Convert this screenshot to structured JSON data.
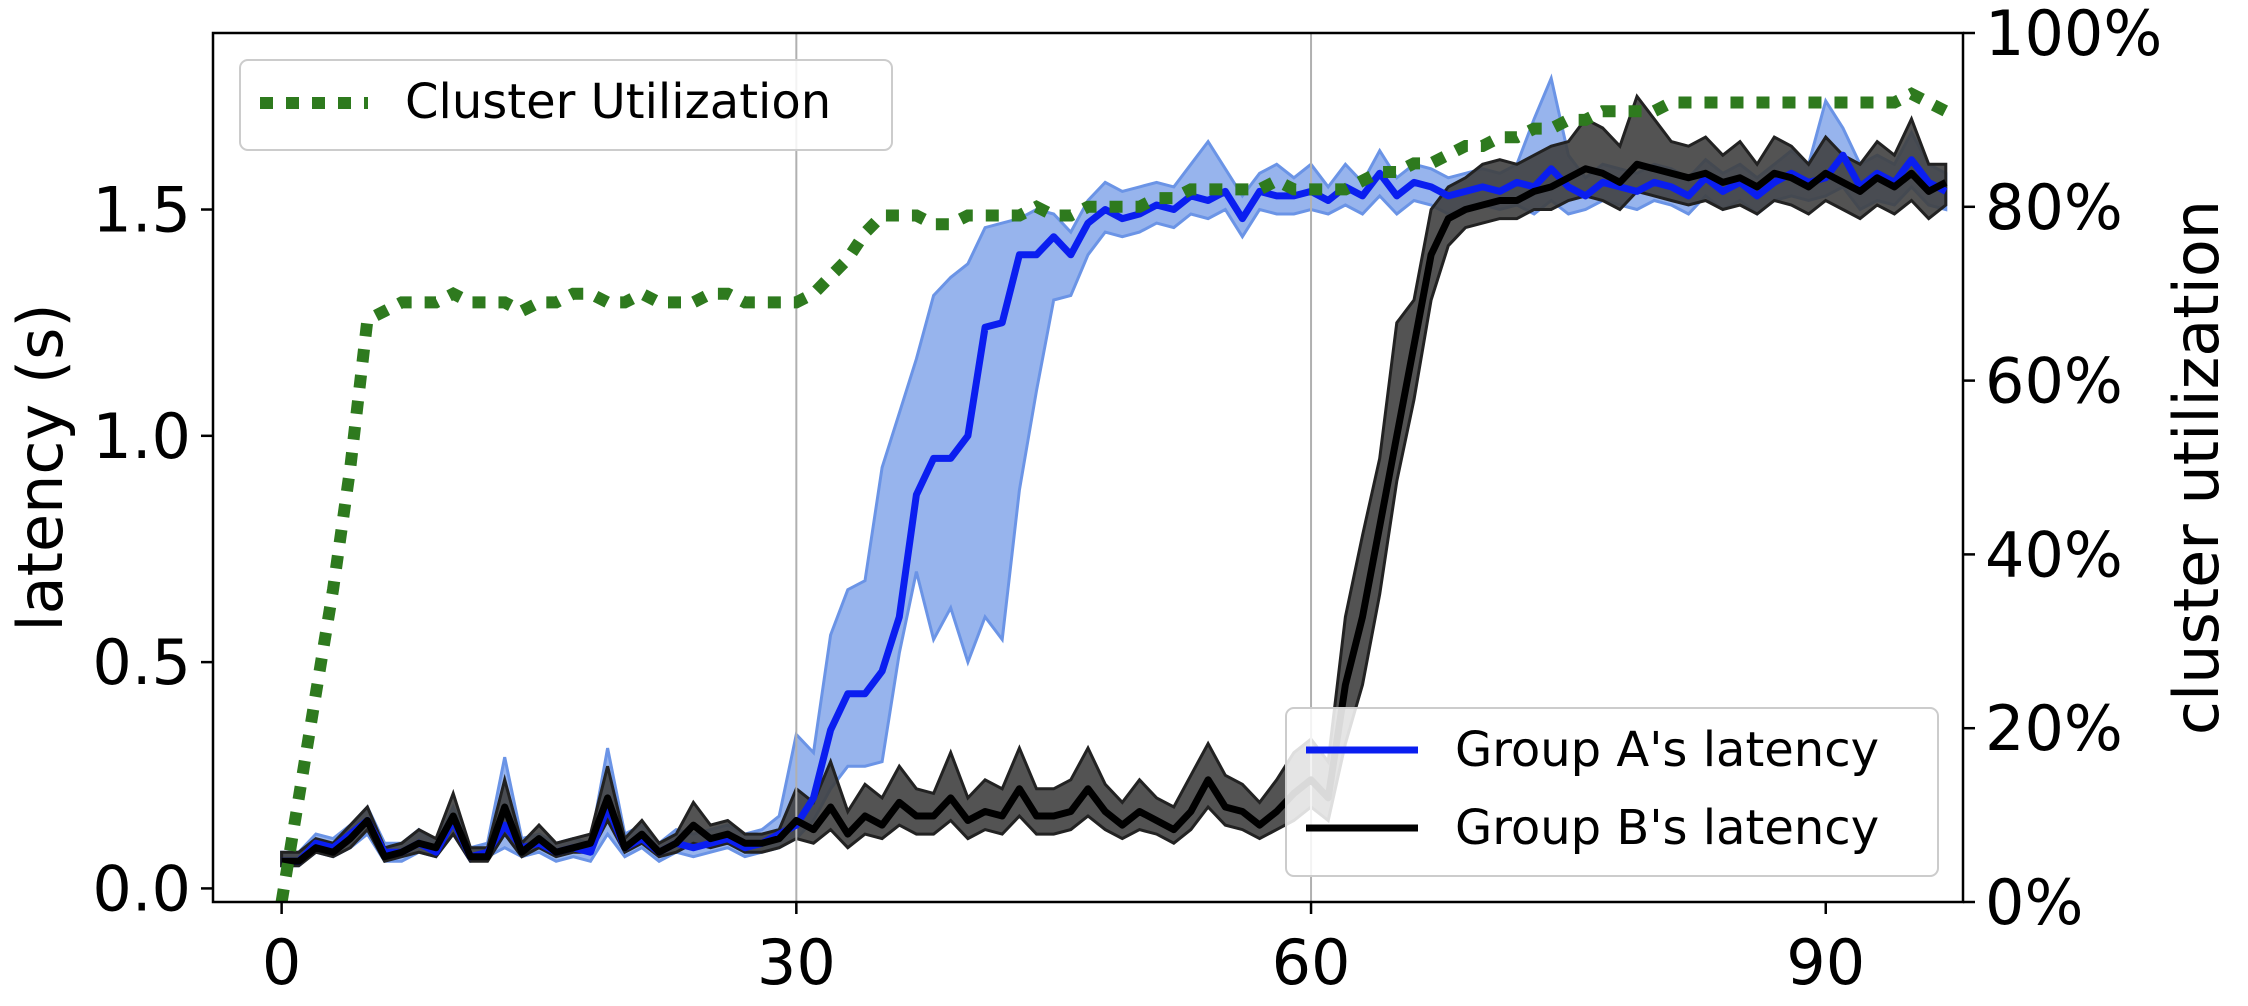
{
  "chart_data": {
    "type": "line",
    "xlabel": "",
    "ylabel": "latency (s)",
    "y2label": "cluster utilization",
    "xlim": [
      -4,
      98
    ],
    "ylim": [
      -0.03,
      1.89
    ],
    "y2lim": [
      0,
      100
    ],
    "x_ticks": [
      0,
      30,
      60,
      90
    ],
    "x_tick_labels": [
      "0",
      "30",
      "60",
      "90"
    ],
    "y_ticks": [
      0.0,
      0.5,
      1.0,
      1.5
    ],
    "y_tick_labels": [
      "0.0",
      "0.5",
      "1.0",
      "1.5"
    ],
    "y2_ticks": [
      0,
      20,
      40,
      60,
      80,
      100
    ],
    "y2_tick_labels": [
      "0%",
      "20%",
      "40%",
      "60%",
      "80%",
      "100%"
    ],
    "vertical_lines_x": [
      30,
      60
    ],
    "grid": false,
    "legends": [
      {
        "placement": "upper-left",
        "entries": [
          "Cluster Utilization"
        ]
      },
      {
        "placement": "lower-right",
        "entries": [
          "Group A's latency",
          "Group B's latency"
        ]
      }
    ],
    "colors": {
      "group_a": "#0a1ef0",
      "group_a_band": "#6b94e6",
      "group_b": "#000000",
      "group_b_band": "#404040",
      "utilization": "#2e7a1e",
      "vline": "#b0b0b0"
    },
    "series": [
      {
        "name": "Group A's latency",
        "axis": "left",
        "x": [
          0,
          1,
          2,
          3,
          4,
          5,
          6,
          7,
          8,
          9,
          10,
          11,
          12,
          13,
          14,
          15,
          16,
          17,
          18,
          19,
          20,
          21,
          22,
          23,
          24,
          25,
          26,
          27,
          28,
          29,
          30,
          31,
          32,
          33,
          34,
          35,
          36,
          37,
          38,
          39,
          40,
          41,
          42,
          43,
          44,
          45,
          46,
          47,
          48,
          49,
          50,
          51,
          52,
          53,
          54,
          55,
          56,
          57,
          58,
          59,
          60,
          61,
          62,
          63,
          64,
          65,
          66,
          67,
          68,
          69,
          70,
          71,
          72,
          73,
          74,
          75,
          76,
          77,
          78,
          79,
          80,
          81,
          82,
          83,
          84,
          85,
          86,
          87,
          88,
          89,
          90,
          91,
          92,
          93,
          94,
          95,
          96,
          97
        ],
        "y": [
          0.06,
          0.06,
          0.1,
          0.09,
          0.12,
          0.15,
          0.08,
          0.08,
          0.1,
          0.08,
          0.15,
          0.07,
          0.08,
          0.14,
          0.09,
          0.1,
          0.08,
          0.09,
          0.08,
          0.18,
          0.09,
          0.11,
          0.08,
          0.1,
          0.09,
          0.1,
          0.11,
          0.09,
          0.1,
          0.12,
          0.14,
          0.2,
          0.35,
          0.43,
          0.43,
          0.48,
          0.6,
          0.87,
          0.95,
          0.95,
          1.0,
          1.24,
          1.25,
          1.4,
          1.4,
          1.44,
          1.4,
          1.47,
          1.5,
          1.48,
          1.49,
          1.51,
          1.5,
          1.53,
          1.52,
          1.54,
          1.48,
          1.54,
          1.53,
          1.53,
          1.54,
          1.52,
          1.55,
          1.53,
          1.58,
          1.53,
          1.56,
          1.55,
          1.53,
          1.54,
          1.55,
          1.54,
          1.56,
          1.55,
          1.59,
          1.55,
          1.53,
          1.56,
          1.55,
          1.54,
          1.56,
          1.55,
          1.53,
          1.57,
          1.54,
          1.56,
          1.53,
          1.56,
          1.58,
          1.56,
          1.57,
          1.62,
          1.55,
          1.58,
          1.56,
          1.61,
          1.56,
          1.54
        ],
        "lower": [
          0.05,
          0.05,
          0.08,
          0.07,
          0.09,
          0.12,
          0.06,
          0.06,
          0.08,
          0.07,
          0.12,
          0.06,
          0.07,
          0.09,
          0.07,
          0.08,
          0.06,
          0.07,
          0.06,
          0.12,
          0.07,
          0.09,
          0.06,
          0.08,
          0.07,
          0.08,
          0.09,
          0.07,
          0.08,
          0.09,
          0.11,
          0.15,
          0.22,
          0.27,
          0.27,
          0.28,
          0.52,
          0.7,
          0.55,
          0.62,
          0.5,
          0.6,
          0.55,
          0.88,
          1.1,
          1.3,
          1.31,
          1.4,
          1.45,
          1.44,
          1.45,
          1.47,
          1.46,
          1.49,
          1.48,
          1.5,
          1.44,
          1.5,
          1.49,
          1.49,
          1.5,
          1.49,
          1.51,
          1.49,
          1.53,
          1.49,
          1.52,
          1.51,
          1.49,
          1.5,
          1.51,
          1.5,
          1.51,
          1.49,
          1.52,
          1.49,
          1.5,
          1.52,
          1.51,
          1.5,
          1.52,
          1.51,
          1.49,
          1.53,
          1.5,
          1.52,
          1.49,
          1.52,
          1.53,
          1.52,
          1.53,
          1.55,
          1.5,
          1.52,
          1.51,
          1.55,
          1.51,
          1.5
        ],
        "upper": [
          0.08,
          0.08,
          0.12,
          0.11,
          0.14,
          0.18,
          0.1,
          0.1,
          0.13,
          0.1,
          0.18,
          0.09,
          0.1,
          0.29,
          0.11,
          0.12,
          0.1,
          0.11,
          0.1,
          0.31,
          0.12,
          0.14,
          0.1,
          0.13,
          0.12,
          0.13,
          0.14,
          0.12,
          0.13,
          0.16,
          0.34,
          0.3,
          0.56,
          0.66,
          0.68,
          0.93,
          1.05,
          1.17,
          1.31,
          1.35,
          1.38,
          1.46,
          1.47,
          1.48,
          1.5,
          1.49,
          1.45,
          1.52,
          1.56,
          1.54,
          1.55,
          1.56,
          1.55,
          1.6,
          1.65,
          1.59,
          1.53,
          1.58,
          1.6,
          1.57,
          1.6,
          1.55,
          1.6,
          1.56,
          1.63,
          1.57,
          1.6,
          1.59,
          1.57,
          1.58,
          1.59,
          1.58,
          1.6,
          1.7,
          1.79,
          1.62,
          1.57,
          1.6,
          1.59,
          1.58,
          1.6,
          1.59,
          1.57,
          1.61,
          1.58,
          1.6,
          1.57,
          1.6,
          1.63,
          1.6,
          1.74,
          1.68,
          1.6,
          1.62,
          1.6,
          1.67,
          1.6,
          1.58
        ]
      },
      {
        "name": "Group B's latency",
        "axis": "left",
        "x": [
          0,
          1,
          2,
          3,
          4,
          5,
          6,
          7,
          8,
          9,
          10,
          11,
          12,
          13,
          14,
          15,
          16,
          17,
          18,
          19,
          20,
          21,
          22,
          23,
          24,
          25,
          26,
          27,
          28,
          29,
          30,
          31,
          32,
          33,
          34,
          35,
          36,
          37,
          38,
          39,
          40,
          41,
          42,
          43,
          44,
          45,
          46,
          47,
          48,
          49,
          50,
          51,
          52,
          53,
          54,
          55,
          56,
          57,
          58,
          59,
          60,
          61,
          62,
          63,
          64,
          65,
          66,
          67,
          68,
          69,
          70,
          71,
          72,
          73,
          74,
          75,
          76,
          77,
          78,
          79,
          80,
          81,
          82,
          83,
          84,
          85,
          86,
          87,
          88,
          89,
          90,
          91,
          92,
          93,
          94,
          95,
          96,
          97
        ],
        "y": [
          0.06,
          0.06,
          0.09,
          0.08,
          0.11,
          0.15,
          0.07,
          0.08,
          0.1,
          0.09,
          0.16,
          0.07,
          0.07,
          0.18,
          0.08,
          0.11,
          0.08,
          0.09,
          0.1,
          0.2,
          0.09,
          0.12,
          0.08,
          0.1,
          0.14,
          0.11,
          0.12,
          0.1,
          0.1,
          0.11,
          0.15,
          0.13,
          0.18,
          0.12,
          0.16,
          0.14,
          0.19,
          0.16,
          0.16,
          0.2,
          0.15,
          0.17,
          0.16,
          0.22,
          0.16,
          0.16,
          0.17,
          0.22,
          0.17,
          0.14,
          0.17,
          0.15,
          0.13,
          0.17,
          0.24,
          0.18,
          0.17,
          0.14,
          0.17,
          0.21,
          0.24,
          0.2,
          0.45,
          0.6,
          0.8,
          1.0,
          1.2,
          1.4,
          1.48,
          1.5,
          1.51,
          1.52,
          1.52,
          1.54,
          1.55,
          1.57,
          1.59,
          1.58,
          1.56,
          1.6,
          1.59,
          1.58,
          1.57,
          1.58,
          1.56,
          1.57,
          1.55,
          1.58,
          1.57,
          1.55,
          1.58,
          1.56,
          1.54,
          1.57,
          1.55,
          1.58,
          1.54,
          1.56
        ],
        "lower": [
          0.05,
          0.05,
          0.08,
          0.07,
          0.09,
          0.13,
          0.06,
          0.07,
          0.08,
          0.07,
          0.12,
          0.06,
          0.06,
          0.12,
          0.07,
          0.09,
          0.07,
          0.08,
          0.08,
          0.15,
          0.08,
          0.1,
          0.07,
          0.08,
          0.1,
          0.09,
          0.1,
          0.08,
          0.08,
          0.09,
          0.11,
          0.1,
          0.13,
          0.09,
          0.12,
          0.11,
          0.14,
          0.12,
          0.12,
          0.15,
          0.11,
          0.13,
          0.12,
          0.16,
          0.12,
          0.12,
          0.13,
          0.16,
          0.13,
          0.11,
          0.13,
          0.12,
          0.1,
          0.13,
          0.18,
          0.14,
          0.13,
          0.11,
          0.13,
          0.15,
          0.18,
          0.15,
          0.32,
          0.45,
          0.65,
          0.9,
          1.08,
          1.3,
          1.42,
          1.46,
          1.47,
          1.48,
          1.48,
          1.5,
          1.5,
          1.52,
          1.53,
          1.52,
          1.5,
          1.54,
          1.53,
          1.52,
          1.51,
          1.52,
          1.5,
          1.51,
          1.49,
          1.52,
          1.51,
          1.49,
          1.52,
          1.5,
          1.48,
          1.51,
          1.49,
          1.52,
          1.48,
          1.51
        ],
        "upper": [
          0.08,
          0.08,
          0.11,
          0.1,
          0.14,
          0.18,
          0.09,
          0.1,
          0.13,
          0.11,
          0.21,
          0.09,
          0.09,
          0.24,
          0.1,
          0.14,
          0.1,
          0.11,
          0.12,
          0.27,
          0.11,
          0.15,
          0.1,
          0.12,
          0.19,
          0.14,
          0.15,
          0.12,
          0.12,
          0.13,
          0.22,
          0.19,
          0.28,
          0.17,
          0.23,
          0.2,
          0.27,
          0.22,
          0.21,
          0.3,
          0.2,
          0.24,
          0.22,
          0.31,
          0.22,
          0.22,
          0.24,
          0.31,
          0.23,
          0.19,
          0.24,
          0.2,
          0.18,
          0.25,
          0.32,
          0.25,
          0.23,
          0.19,
          0.24,
          0.3,
          0.33,
          0.28,
          0.6,
          0.78,
          0.95,
          1.25,
          1.3,
          1.5,
          1.55,
          1.57,
          1.6,
          1.61,
          1.6,
          1.62,
          1.64,
          1.65,
          1.7,
          1.68,
          1.64,
          1.75,
          1.7,
          1.65,
          1.64,
          1.66,
          1.62,
          1.65,
          1.6,
          1.66,
          1.64,
          1.6,
          1.66,
          1.62,
          1.6,
          1.65,
          1.62,
          1.7,
          1.6,
          1.6
        ]
      },
      {
        "name": "Cluster Utilization",
        "axis": "right",
        "x": [
          0,
          1,
          2,
          3,
          4,
          5,
          6,
          7,
          8,
          9,
          10,
          11,
          12,
          13,
          14,
          15,
          16,
          17,
          18,
          19,
          20,
          21,
          22,
          23,
          24,
          25,
          26,
          27,
          28,
          29,
          30,
          31,
          32,
          33,
          34,
          35,
          36,
          37,
          38,
          39,
          40,
          41,
          42,
          43,
          44,
          45,
          46,
          47,
          48,
          49,
          50,
          51,
          52,
          53,
          54,
          55,
          56,
          57,
          58,
          59,
          60,
          61,
          62,
          63,
          64,
          65,
          66,
          67,
          68,
          69,
          70,
          71,
          72,
          73,
          74,
          75,
          76,
          77,
          78,
          79,
          80,
          81,
          82,
          83,
          84,
          85,
          86,
          87,
          88,
          89,
          90,
          91,
          92,
          93,
          94,
          95,
          96,
          97
        ],
        "y": [
          0,
          12,
          24,
          36,
          50,
          67,
          68,
          69,
          69,
          69,
          70,
          69,
          69,
          69,
          68,
          69,
          69,
          70,
          70,
          69,
          69,
          70,
          69,
          69,
          69,
          70,
          70,
          69,
          69,
          69,
          69,
          70,
          72,
          74,
          77,
          79,
          79,
          79,
          78,
          78,
          79,
          79,
          79,
          79,
          80,
          79,
          79,
          80,
          80,
          80,
          80,
          81,
          81,
          82,
          82,
          82,
          82,
          82,
          83,
          82,
          82,
          82,
          82,
          83,
          84,
          84,
          85,
          85,
          86,
          87,
          87,
          88,
          88,
          89,
          89,
          90,
          90,
          91,
          91,
          91,
          91,
          92,
          92,
          92,
          92,
          92,
          92,
          92,
          92,
          92,
          92,
          92,
          92,
          92,
          92,
          93,
          92,
          91
        ]
      }
    ]
  }
}
